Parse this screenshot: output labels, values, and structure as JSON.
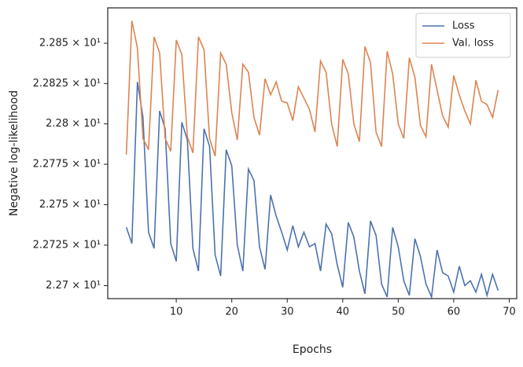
{
  "chart_data": {
    "type": "line",
    "x_label": "Epochs",
    "y_label": "Negative log-likelihood",
    "x": [
      1,
      2,
      3,
      4,
      5,
      6,
      7,
      8,
      9,
      10,
      11,
      12,
      13,
      14,
      15,
      16,
      17,
      18,
      19,
      20,
      21,
      22,
      23,
      24,
      25,
      26,
      27,
      28,
      29,
      30,
      31,
      32,
      33,
      34,
      35,
      36,
      37,
      38,
      39,
      40,
      41,
      42,
      43,
      44,
      45,
      46,
      47,
      48,
      49,
      50,
      51,
      52,
      53,
      54,
      55,
      56,
      57,
      58,
      59,
      60,
      61,
      62,
      63,
      64,
      65,
      66,
      67,
      68
    ],
    "series": [
      {
        "name": "Loss",
        "color": "#4c72b0",
        "values": [
          22.736,
          22.726,
          22.826,
          22.804,
          22.733,
          22.723,
          22.808,
          22.797,
          22.726,
          22.715,
          22.801,
          22.79,
          22.723,
          22.709,
          22.797,
          22.786,
          22.719,
          22.706,
          22.784,
          22.774,
          22.725,
          22.709,
          22.772,
          22.765,
          22.724,
          22.71,
          22.756,
          22.743,
          22.733,
          22.722,
          22.737,
          22.724,
          22.733,
          22.724,
          22.726,
          22.709,
          22.738,
          22.732,
          22.713,
          22.699,
          22.739,
          22.73,
          22.709,
          22.695,
          22.74,
          22.731,
          22.701,
          22.693,
          22.736,
          22.724,
          22.703,
          22.694,
          22.729,
          22.718,
          22.701,
          22.693,
          22.722,
          22.708,
          22.706,
          22.696,
          22.712,
          22.7,
          22.703,
          22.696,
          22.707,
          22.694,
          22.707,
          22.697
        ]
      },
      {
        "name": "Val. loss",
        "color": "#dd8452",
        "values": [
          22.781,
          22.864,
          22.847,
          22.791,
          22.784,
          22.854,
          22.844,
          22.791,
          22.783,
          22.852,
          22.843,
          22.792,
          22.782,
          22.854,
          22.846,
          22.791,
          22.78,
          22.844,
          22.837,
          22.807,
          22.79,
          22.837,
          22.832,
          22.804,
          22.793,
          22.828,
          22.818,
          22.826,
          22.814,
          22.813,
          22.802,
          22.823,
          22.816,
          22.809,
          22.795,
          22.839,
          22.832,
          22.8,
          22.786,
          22.84,
          22.831,
          22.8,
          22.789,
          22.848,
          22.838,
          22.795,
          22.786,
          22.845,
          22.831,
          22.8,
          22.791,
          22.841,
          22.829,
          22.799,
          22.792,
          22.837,
          22.821,
          22.805,
          22.798,
          22.83,
          22.818,
          22.808,
          22.8,
          22.827,
          22.814,
          22.812,
          22.804,
          22.821
        ]
      }
    ],
    "xlim": [
      -2.35,
      71.35
    ],
    "xticks": [
      10,
      20,
      30,
      40,
      50,
      60,
      70
    ],
    "ylim": [
      22.692,
      22.872
    ],
    "yscale": "log",
    "yticks": [
      {
        "value": 22.7,
        "label": "2.27 × 10¹"
      },
      {
        "value": 22.725,
        "label": "2.2725 × 10¹"
      },
      {
        "value": 22.75,
        "label": "2.275 × 10¹"
      },
      {
        "value": 22.775,
        "label": "2.2775 × 10¹"
      },
      {
        "value": 22.8,
        "label": "2.28 × 10¹"
      },
      {
        "value": 22.825,
        "label": "2.2825 × 10¹"
      },
      {
        "value": 22.85,
        "label": "2.285 × 10¹"
      }
    ],
    "legend": "upper right",
    "grid": false
  }
}
